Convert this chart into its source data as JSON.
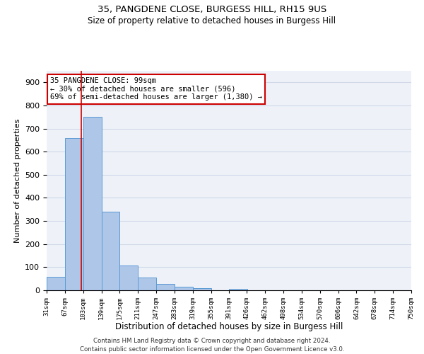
{
  "title1": "35, PANGDENE CLOSE, BURGESS HILL, RH15 9US",
  "title2": "Size of property relative to detached houses in Burgess Hill",
  "xlabel": "Distribution of detached houses by size in Burgess Hill",
  "ylabel": "Number of detached properties",
  "footer1": "Contains HM Land Registry data © Crown copyright and database right 2024.",
  "footer2": "Contains public sector information licensed under the Open Government Licence v3.0.",
  "annotation_line1": "35 PANGDENE CLOSE: 99sqm",
  "annotation_line2": "← 30% of detached houses are smaller (596)",
  "annotation_line3": "69% of semi-detached houses are larger (1,380) →",
  "property_size": 99,
  "bin_edges": [
    31,
    67,
    103,
    139,
    175,
    211,
    247,
    283,
    319,
    355,
    391,
    426,
    462,
    498,
    534,
    570,
    606,
    642,
    678,
    714,
    750
  ],
  "bar_heights": [
    57,
    660,
    750,
    340,
    108,
    55,
    27,
    15,
    8,
    0,
    5,
    0,
    0,
    0,
    0,
    0,
    0,
    0,
    0,
    0
  ],
  "bar_color": "#aec6e8",
  "bar_edge_color": "#5b9bd5",
  "vline_color": "#cc0000",
  "annotation_box_color": "#cc0000",
  "grid_color": "#d0d8e8",
  "background_color": "#eef2f8",
  "ylim": [
    0,
    950
  ],
  "yticks": [
    0,
    100,
    200,
    300,
    400,
    500,
    600,
    700,
    800,
    900
  ]
}
